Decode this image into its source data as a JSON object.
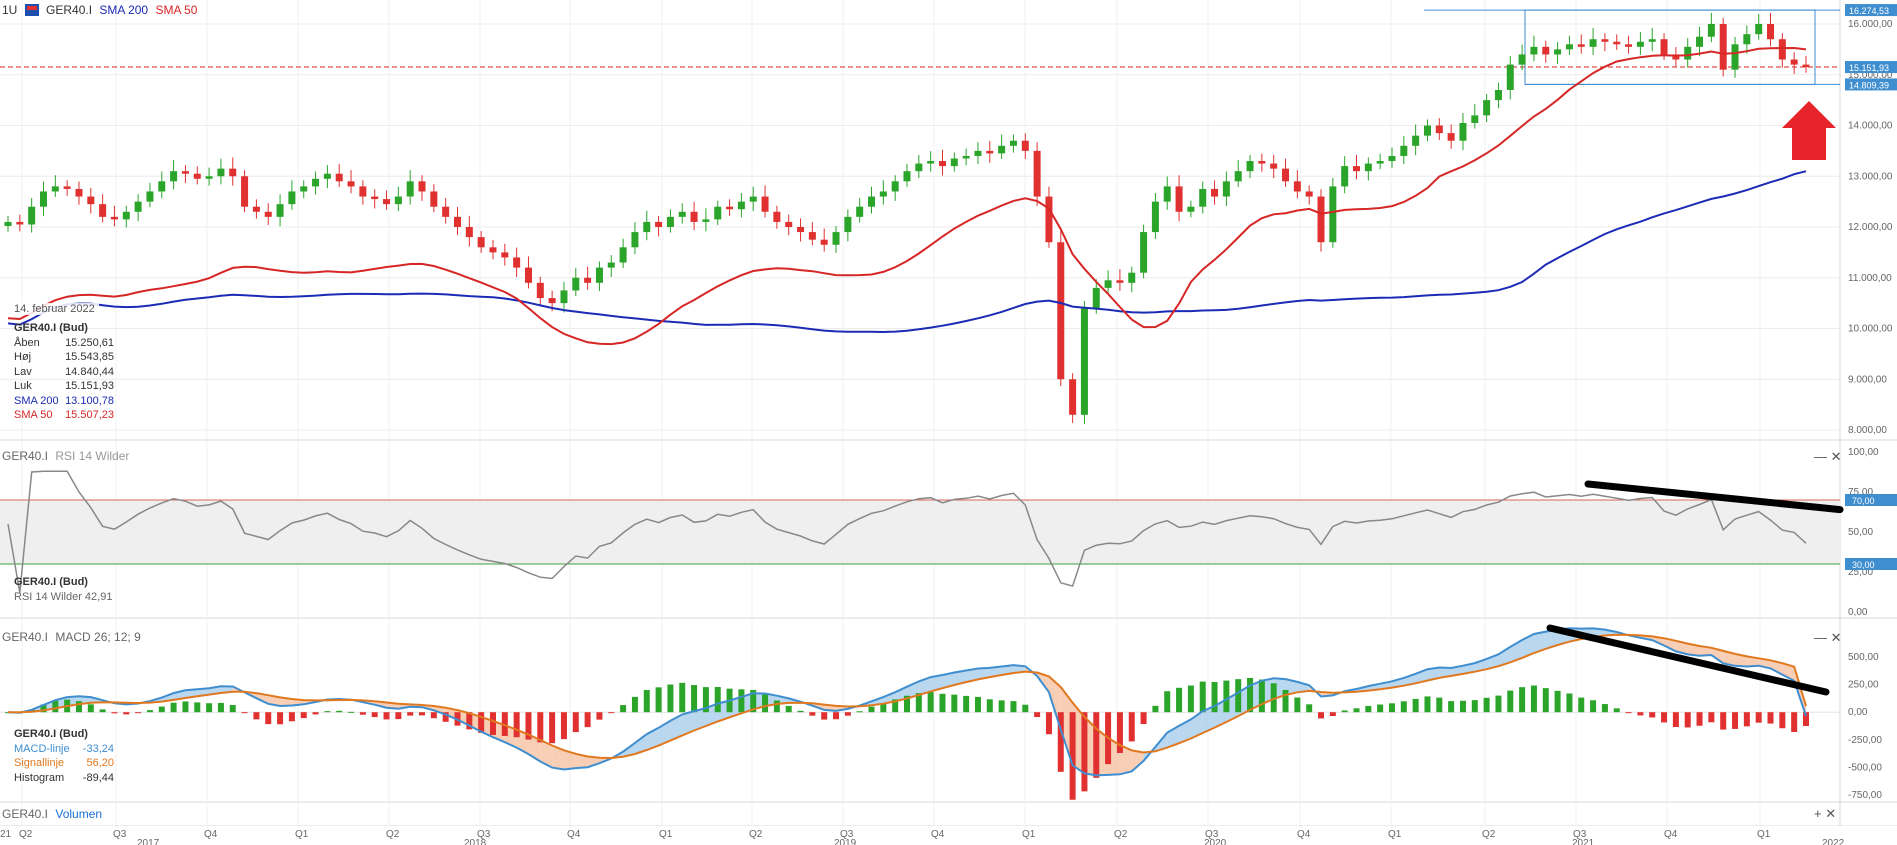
{
  "header": {
    "interval": "1U",
    "symbol": "GER40.I",
    "sma200_label": "SMA 200",
    "sma50_label": "SMA 50"
  },
  "colors": {
    "candle_up": "#2aa52a",
    "candle_down": "#e03030",
    "sma200": "#1c2bb5",
    "sma50": "#d62626",
    "rsi": "#888888",
    "macd": "#3e8ed0",
    "signal": "#e07820",
    "annotation_arrow": "#e8242b",
    "trendline": "#000000"
  },
  "icons": [
    "cfd-flag-icon",
    "close-icon",
    "minimize-icon",
    "add-icon",
    "up-arrow-icon"
  ],
  "info_box": {
    "date": "14. februar 2022",
    "title": "GER40.I (Bud)",
    "rows": [
      {
        "label": "Åben",
        "value": "15.250,61"
      },
      {
        "label": "Høj",
        "value": "15.543,85"
      },
      {
        "label": "Lav",
        "value": "14.840,44"
      },
      {
        "label": "Luk",
        "value": "15.151,93"
      },
      {
        "label": "SMA 200",
        "value": "13.100,78"
      },
      {
        "label": "SMA 50",
        "value": "15.507,23"
      }
    ]
  },
  "rsi_panel": {
    "title": "GER40.I",
    "subtitle": "RSI 14 Wilder",
    "info_title": "GER40.I (Bud)",
    "info_label": "RSI 14 Wilder",
    "info_value": "42,91"
  },
  "macd_panel": {
    "title": "GER40.I",
    "subtitle": "MACD 26; 12; 9",
    "info_title": "GER40.I (Bud)",
    "rows": [
      {
        "label": "MACD-linje",
        "value": "-33,24"
      },
      {
        "label": "Signallinje",
        "value": "56,20"
      },
      {
        "label": "Histogram",
        "value": "-89,44"
      }
    ]
  },
  "volume_panel": {
    "title": "GER40.I",
    "subtitle": "Volumen"
  },
  "price_axis": {
    "ticks": [
      "16.000,00",
      "15.000,00",
      "14.000,00",
      "13.000,00",
      "12.000,00",
      "11.000,00",
      "10.000,00",
      "9.000,00",
      "8.000,00"
    ],
    "tags": [
      {
        "text": "16.274,53",
        "value": 16274.53
      },
      {
        "text": "15.151,93",
        "value": 15151.93
      },
      {
        "text": "14.809,39",
        "value": 14809.39
      }
    ]
  },
  "rsi_axis": {
    "ticks": [
      "100,00",
      "75,00",
      "50,00",
      "25,00",
      "0,00"
    ],
    "tags": [
      "70,00",
      "30,00"
    ]
  },
  "macd_axis": {
    "ticks": [
      "500,00",
      "250,00",
      "0,00",
      "-250,00",
      "-500,00",
      "-750,00"
    ]
  },
  "time_axis": {
    "quarters": [
      "Q2",
      "Q3",
      "Q4",
      "Q1",
      "Q2",
      "Q3",
      "Q4",
      "Q1",
      "Q2",
      "Q3",
      "Q4",
      "Q1",
      "Q2",
      "Q3",
      "Q4",
      "Q1",
      "Q2",
      "Q3",
      "Q4",
      "Q1"
    ],
    "years": [
      "2017",
      "2018",
      "2019",
      "2020",
      "2021",
      "2022"
    ],
    "edge": "21"
  },
  "chart_data": {
    "type": "candlestick",
    "interval": "weekly",
    "x_start": "2017-04",
    "x_end": "2022-02",
    "ylim": [
      7800,
      16500
    ],
    "weekly_close": [
      12100,
      12050,
      12400,
      12700,
      12800,
      12750,
      12600,
      12450,
      12200,
      12150,
      12300,
      12500,
      12700,
      12900,
      13100,
      13050,
      12950,
      13000,
      13150,
      13000,
      12400,
      12300,
      12200,
      12450,
      12700,
      12800,
      12950,
      13050,
      12900,
      12800,
      12600,
      12550,
      12450,
      12600,
      12900,
      12700,
      12400,
      12200,
      12000,
      11800,
      11600,
      11500,
      11400,
      11200,
      10900,
      10600,
      10500,
      10750,
      11000,
      10900,
      11200,
      11300,
      11600,
      11900,
      12100,
      12000,
      12200,
      12300,
      12100,
      12150,
      12400,
      12350,
      12500,
      12600,
      12300,
      12100,
      12000,
      11900,
      11750,
      11650,
      11900,
      12200,
      12400,
      12600,
      12700,
      12900,
      13100,
      13250,
      13300,
      13200,
      13350,
      13400,
      13500,
      13450,
      13600,
      13700,
      13500,
      12600,
      11700,
      9000,
      8300,
      10400,
      10800,
      10950,
      10900,
      11100,
      11900,
      12500,
      12800,
      12300,
      12400,
      12750,
      12600,
      12900,
      13100,
      13300,
      13250,
      13150,
      12900,
      12700,
      12600,
      11700,
      12800,
      13200,
      13100,
      13250,
      13300,
      13400,
      13600,
      13800,
      14000,
      13850,
      13700,
      14050,
      14200,
      14500,
      14700,
      15200,
      15400,
      15550,
      15400,
      15500,
      15600,
      15550,
      15700,
      15650,
      15600,
      15550,
      15650,
      15700,
      15400,
      15300,
      15550,
      15750,
      16000,
      15100,
      15600,
      15800,
      16000,
      15700,
      15300,
      15200,
      15150
    ],
    "sma200_range": [
      10100,
      13100
    ],
    "sma50_range": [
      10200,
      15500
    ],
    "rsi": {
      "levels": [
        70,
        30
      ],
      "ylim": [
        0,
        100
      ],
      "last": 42.91
    },
    "macd": {
      "ylim": [
        -800,
        650
      ],
      "last_macd": -33.24,
      "last_signal": 56.2,
      "last_histogram": -89.44
    },
    "annotations": [
      "black downward trendline on RSI",
      "black downward trendline on MACD",
      "red up arrow near price",
      "rectangle consolidation range 14.809,39 – 16.274,53"
    ]
  }
}
